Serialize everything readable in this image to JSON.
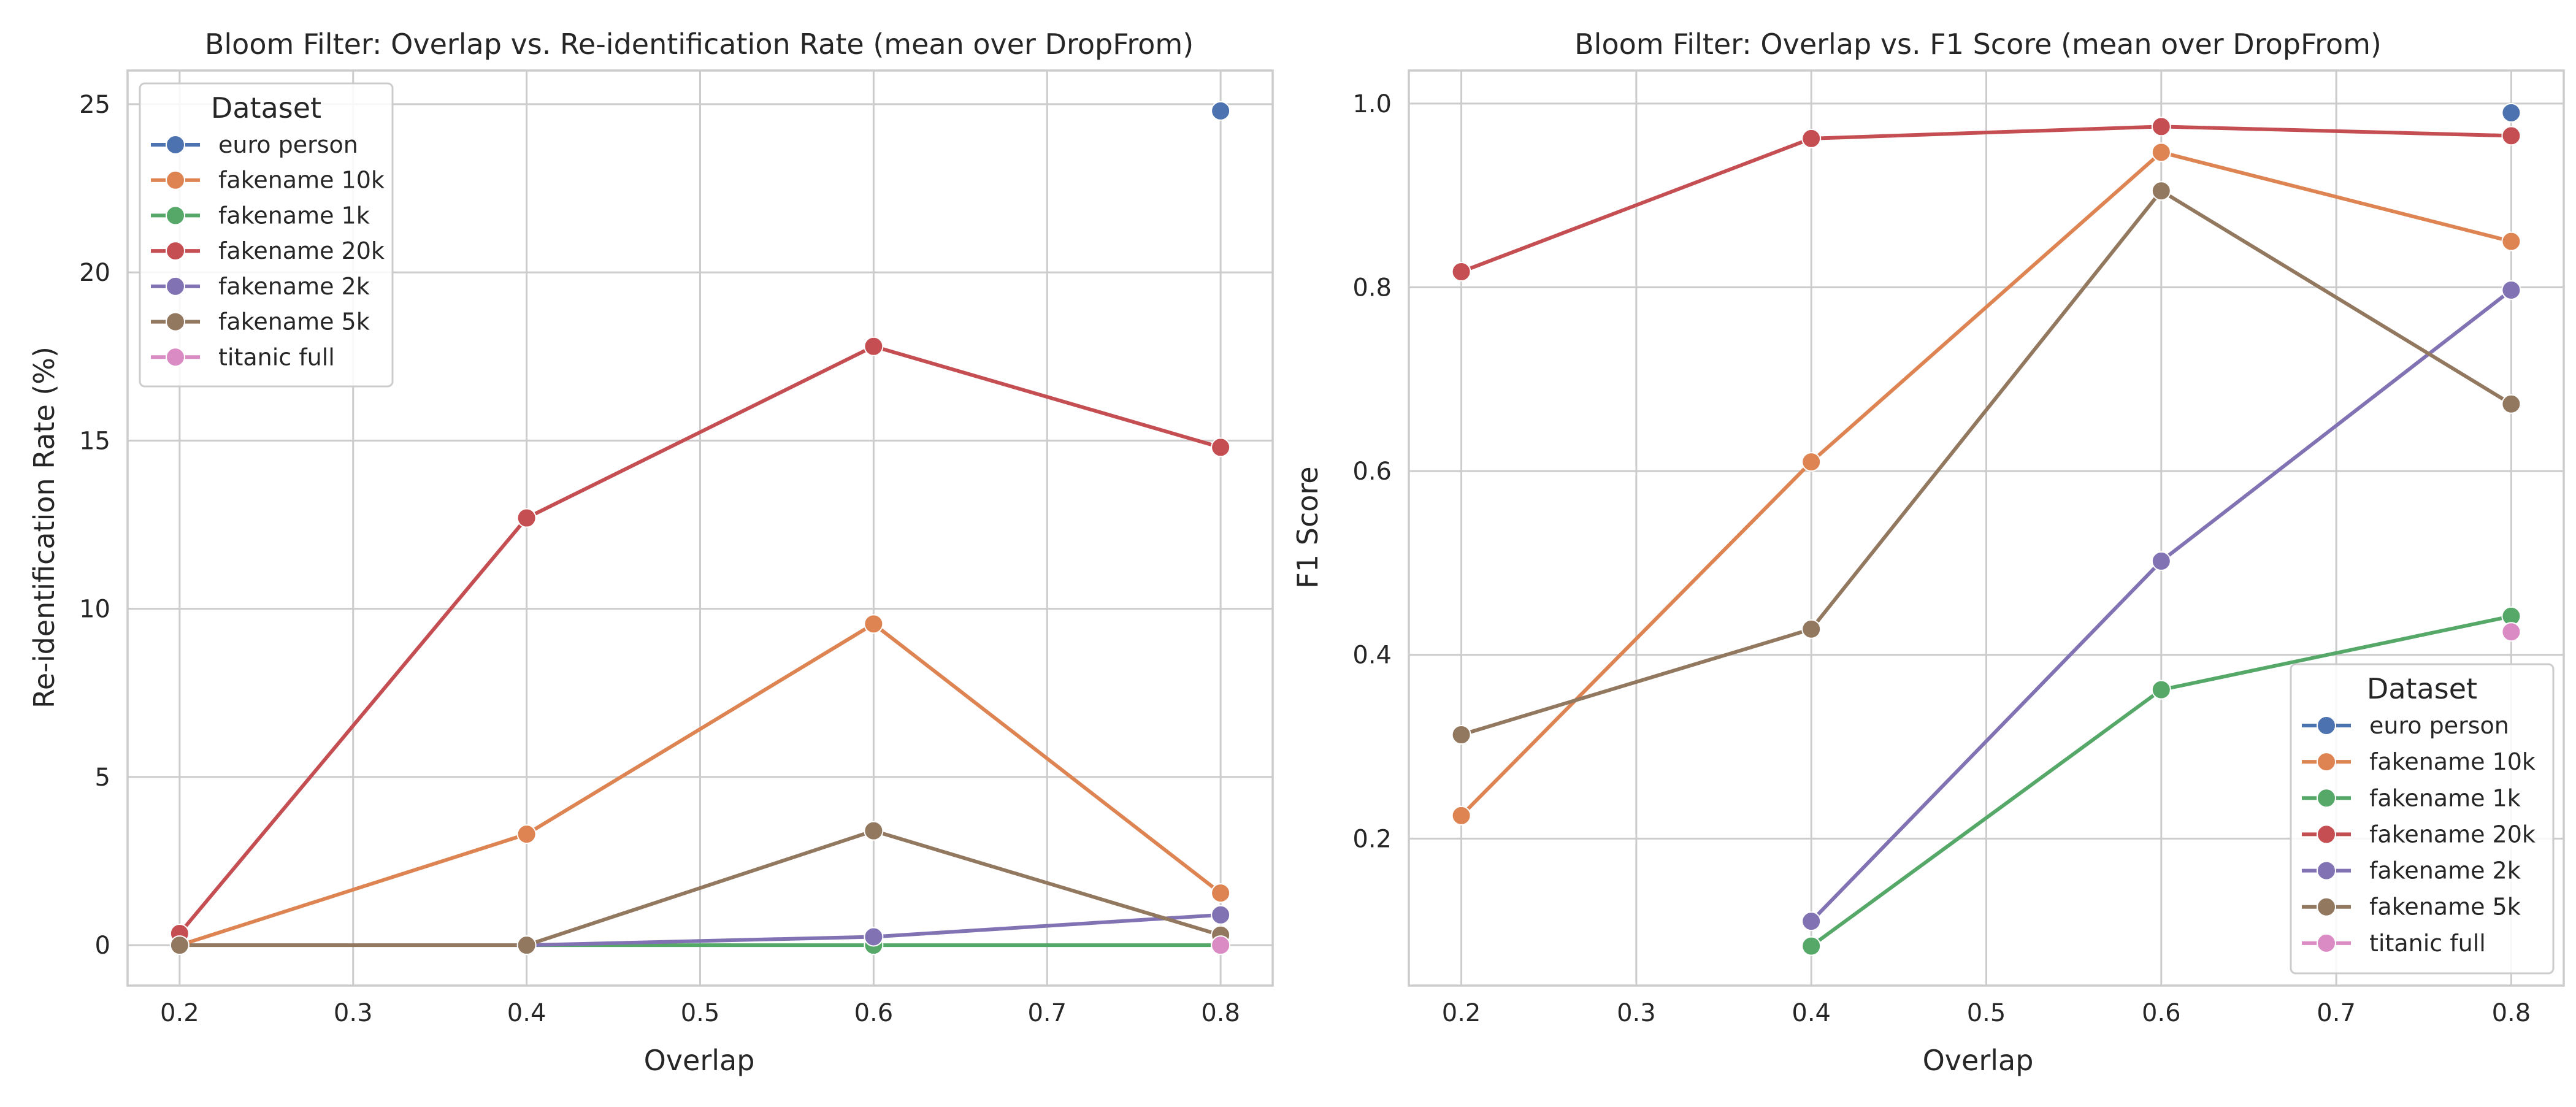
{
  "colors": {
    "euro person": "#4c72b0",
    "fakename 10k": "#dd8452",
    "fakename 1k": "#55a868",
    "fakename 20k": "#c44e52",
    "fakename 2k": "#8172b3",
    "fakename 5k": "#937860",
    "titanic full": "#da8bc3",
    "grid": "#cccccc",
    "spine": "#cccccc"
  },
  "chart_data": [
    {
      "type": "line",
      "title": "Bloom Filter: Overlap vs. Re-identification Rate (mean over DropFrom)",
      "xlabel": "Overlap",
      "ylabel": "Re-identification Rate (%)",
      "xlim": [
        0.17,
        0.83
      ],
      "ylim": [
        -1.2,
        26.0
      ],
      "xticks": [
        0.2,
        0.3,
        0.4,
        0.5,
        0.6,
        0.7,
        0.8
      ],
      "xtick_labels": [
        "0.2",
        "0.3",
        "0.4",
        "0.5",
        "0.6",
        "0.7",
        "0.8"
      ],
      "yticks": [
        0,
        5,
        10,
        15,
        20,
        25
      ],
      "ytick_labels": [
        "0",
        "5",
        "10",
        "15",
        "20",
        "25"
      ],
      "grid": true,
      "legend": {
        "title": "Dataset",
        "position": "top-left"
      },
      "series": [
        {
          "name": "euro person",
          "x": [
            0.8
          ],
          "y": [
            24.8
          ]
        },
        {
          "name": "fakename 10k",
          "x": [
            0.2,
            0.4,
            0.6,
            0.8
          ],
          "y": [
            0.0,
            3.3,
            9.55,
            1.55
          ]
        },
        {
          "name": "fakename 1k",
          "x": [
            0.4,
            0.6,
            0.8
          ],
          "y": [
            0.0,
            0.0,
            0.0
          ]
        },
        {
          "name": "fakename 20k",
          "x": [
            0.2,
            0.4,
            0.6,
            0.8
          ],
          "y": [
            0.35,
            12.7,
            17.8,
            14.8
          ]
        },
        {
          "name": "fakename 2k",
          "x": [
            0.4,
            0.6,
            0.8
          ],
          "y": [
            0.0,
            0.25,
            0.9
          ]
        },
        {
          "name": "fakename 5k",
          "x": [
            0.2,
            0.4,
            0.6,
            0.8
          ],
          "y": [
            0.0,
            0.0,
            3.4,
            0.3
          ]
        },
        {
          "name": "titanic full",
          "x": [
            0.8
          ],
          "y": [
            0.0
          ]
        }
      ]
    },
    {
      "type": "line",
      "title": "Bloom Filter: Overlap vs. F1 Score (mean over DropFrom)",
      "xlabel": "Overlap",
      "ylabel": "F1 Score",
      "xlim": [
        0.17,
        0.83
      ],
      "ylim": [
        0.04,
        1.036
      ],
      "xticks": [
        0.2,
        0.3,
        0.4,
        0.5,
        0.6,
        0.7,
        0.8
      ],
      "xtick_labels": [
        "0.2",
        "0.3",
        "0.4",
        "0.5",
        "0.6",
        "0.7",
        "0.8"
      ],
      "yticks": [
        0.2,
        0.4,
        0.6,
        0.8,
        1.0
      ],
      "ytick_labels": [
        "0.2",
        "0.4",
        "0.6",
        "0.8",
        "1.0"
      ],
      "grid": true,
      "legend": {
        "title": "Dataset",
        "position": "bottom-right"
      },
      "series": [
        {
          "name": "euro person",
          "x": [
            0.8
          ],
          "y": [
            0.99
          ]
        },
        {
          "name": "fakename 10k",
          "x": [
            0.2,
            0.4,
            0.6,
            0.8
          ],
          "y": [
            0.225,
            0.61,
            0.947,
            0.85
          ]
        },
        {
          "name": "fakename 1k",
          "x": [
            0.4,
            0.6,
            0.8
          ],
          "y": [
            0.083,
            0.362,
            0.442
          ]
        },
        {
          "name": "fakename 20k",
          "x": [
            0.2,
            0.4,
            0.6,
            0.8
          ],
          "y": [
            0.817,
            0.962,
            0.975,
            0.965
          ]
        },
        {
          "name": "fakename 2k",
          "x": [
            0.4,
            0.6,
            0.8
          ],
          "y": [
            0.11,
            0.502,
            0.797
          ]
        },
        {
          "name": "fakename 5k",
          "x": [
            0.2,
            0.4,
            0.6,
            0.8
          ],
          "y": [
            0.313,
            0.428,
            0.905,
            0.673
          ]
        },
        {
          "name": "titanic full",
          "x": [
            0.8
          ],
          "y": [
            0.425
          ]
        }
      ]
    }
  ]
}
